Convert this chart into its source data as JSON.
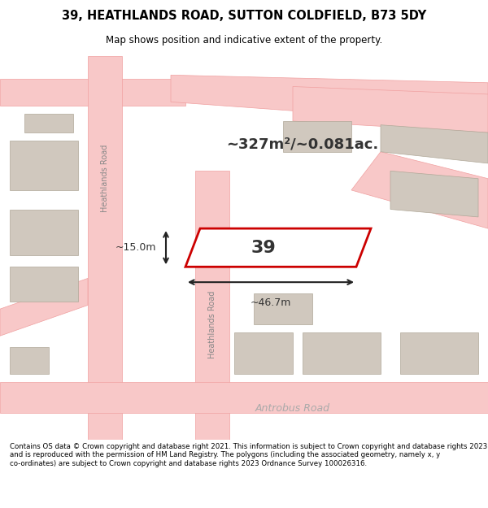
{
  "title_line1": "39, HEATHLANDS ROAD, SUTTON COLDFIELD, B73 5DY",
  "title_line2": "Map shows position and indicative extent of the property.",
  "area_text": "~327m²/~0.081ac.",
  "property_number": "39",
  "dim_width": "~46.7m",
  "dim_height": "~15.0m",
  "road_label_1": "Heathlands Road",
  "road_label_2": "Heathlands Road",
  "road_label_bottom": "Antrobus Road",
  "footer_text": "Contains OS data © Crown copyright and database right 2021. This information is subject to Crown copyright and database rights 2023 and is reproduced with the permission of HM Land Registry. The polygons (including the associated geometry, namely x, y co-ordinates) are subject to Crown copyright and database rights 2023 Ordnance Survey 100026316.",
  "bg_color": "#f0ece8",
  "map_bg": "#f5f0eb",
  "road_color": "#f8c8c8",
  "road_stroke": "#f0a0a0",
  "building_color": "#d8d0c8",
  "property_fill": "white",
  "property_stroke": "#cc0000",
  "footer_bg": "white",
  "title_bg": "white"
}
